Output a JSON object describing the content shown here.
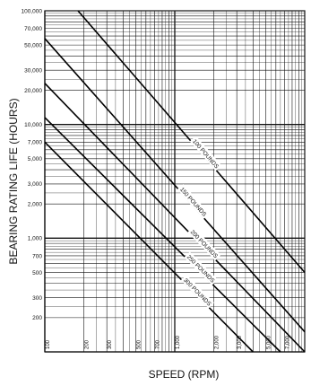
{
  "chart_data": {
    "type": "line",
    "title": "",
    "xlabel": "SPEED (RPM)",
    "ylabel": "BEARING RATING LIFE (HOURS)",
    "x_scale": "log",
    "y_scale": "log",
    "xlim": [
      100,
      10000
    ],
    "ylim": [
      100,
      100000
    ],
    "grid": true,
    "legend": "none",
    "x_tick_labels": [
      {
        "value": 100,
        "label": "100"
      },
      {
        "value": 200,
        "label": "200"
      },
      {
        "value": 300,
        "label": "300"
      },
      {
        "value": 500,
        "label": "500"
      },
      {
        "value": 700,
        "label": "700"
      },
      {
        "value": 1000,
        "label": "1,000"
      },
      {
        "value": 2000,
        "label": "2,000"
      },
      {
        "value": 3000,
        "label": "3,000"
      },
      {
        "value": 5000,
        "label": "5,000"
      },
      {
        "value": 7000,
        "label": "7,000"
      }
    ],
    "y_tick_labels": [
      {
        "value": 100000,
        "label": "100,000"
      },
      {
        "value": 70000,
        "label": "70,000"
      },
      {
        "value": 50000,
        "label": "50,000"
      },
      {
        "value": 30000,
        "label": "30,000"
      },
      {
        "value": 20000,
        "label": "20,000"
      },
      {
        "value": 10000,
        "label": "10,000"
      },
      {
        "value": 7000,
        "label": "7,000"
      },
      {
        "value": 5000,
        "label": "5,000"
      },
      {
        "value": 3000,
        "label": "3,000"
      },
      {
        "value": 2000,
        "label": "2,000"
      },
      {
        "value": 1000,
        "label": "1,000"
      },
      {
        "value": 700,
        "label": "700"
      },
      {
        "value": 500,
        "label": "500"
      },
      {
        "value": 300,
        "label": "300"
      },
      {
        "value": 200,
        "label": "200"
      }
    ],
    "series": [
      {
        "name": "100 POUNDS",
        "points": [
          [
            180,
            100000
          ],
          [
            10000,
            500
          ]
        ],
        "label_at": 1350
      },
      {
        "name": "150 POUNDS",
        "points": [
          [
            100,
            57000
          ],
          [
            10000,
            150
          ]
        ],
        "label_at": 1080
      },
      {
        "name": "200 POUNDS",
        "points": [
          [
            100,
            23000
          ],
          [
            10000,
            100
          ]
        ],
        "label_at": 1300
      },
      {
        "name": "250 POUNDS",
        "points": [
          [
            100,
            11500
          ],
          [
            6500,
            100
          ]
        ],
        "label_at": 1220
      },
      {
        "name": "300 POUNDS",
        "points": [
          [
            100,
            7000
          ],
          [
            4000,
            100
          ]
        ],
        "label_at": 1150
      }
    ]
  }
}
